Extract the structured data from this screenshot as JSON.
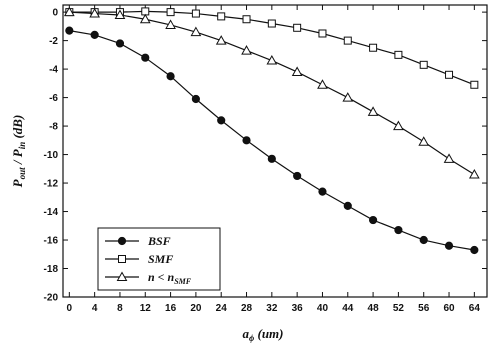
{
  "chart_data": {
    "type": "line",
    "x": [
      0,
      4,
      8,
      12,
      16,
      20,
      24,
      28,
      32,
      36,
      40,
      44,
      48,
      52,
      56,
      60,
      64
    ],
    "x_ticks": [
      "0",
      "4",
      "8",
      "12",
      "16",
      "20",
      "24",
      "28",
      "32",
      "36",
      "40",
      "44",
      "48",
      "52",
      "56",
      "60",
      "64"
    ],
    "y_ticks": [
      "0",
      "-2",
      "-4",
      "-6",
      "-8",
      "-10",
      "-12",
      "-14",
      "-16",
      "-18",
      "-20"
    ],
    "xlim": [
      -1,
      66
    ],
    "ylim": [
      -20,
      0.5
    ],
    "xlabel": "a_ϕ (um)",
    "ylabel": "P_out / P_in (dB)",
    "grid": false,
    "legend_position": "lower-left",
    "series": [
      {
        "name": "BSF",
        "marker": "filled-circle",
        "values": [
          -1.3,
          -1.6,
          -2.2,
          -3.2,
          -4.5,
          -6.1,
          -7.6,
          -9.0,
          -10.3,
          -11.5,
          -12.6,
          -13.6,
          -14.6,
          -15.3,
          -16.0,
          -16.4,
          -16.7
        ]
      },
      {
        "name": "SMF",
        "marker": "open-square",
        "values": [
          0.0,
          0.0,
          0.0,
          0.05,
          0.0,
          -0.1,
          -0.3,
          -0.5,
          -0.8,
          -1.1,
          -1.5,
          -2.0,
          -2.5,
          -3.0,
          -3.7,
          -4.4,
          -5.1
        ]
      },
      {
        "name": "n < n_SMF",
        "marker": "open-triangle",
        "values": [
          0.0,
          -0.1,
          -0.2,
          -0.5,
          -0.9,
          -1.4,
          -2.0,
          -2.7,
          -3.4,
          -4.2,
          -5.1,
          -6.0,
          -7.0,
          -8.0,
          -9.1,
          -10.3,
          -11.4
        ]
      }
    ],
    "legend_labels": {
      "bsf": "BSF",
      "smf": "SMF",
      "n_sym": "n < n",
      "n_sub": "SMF"
    },
    "axis_titles": {
      "x_main": "a",
      "x_sub": "ϕ",
      "x_unit": " (um)",
      "y_p1": "P",
      "y_sub1": "out",
      "y_mid": " / P",
      "y_sub2": "in",
      "y_unit": " (dB)"
    }
  }
}
